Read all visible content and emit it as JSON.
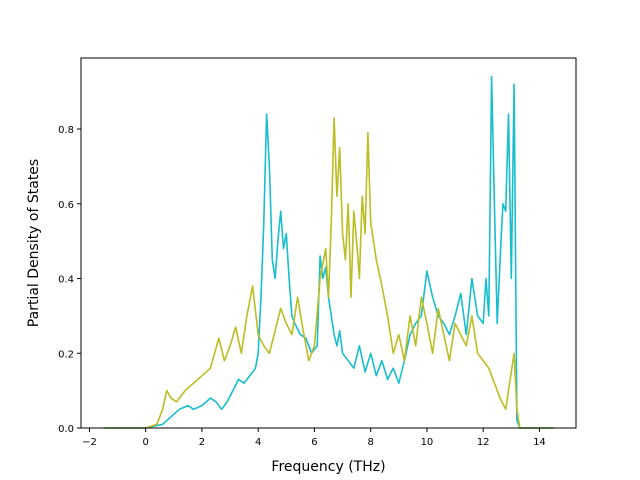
{
  "chart_data": {
    "type": "line",
    "xlabel": "Frequency (THz)",
    "ylabel": "Partial Density of States",
    "xlim": [
      -2.3,
      15.3
    ],
    "ylim": [
      0,
      0.99
    ],
    "xticks": [
      -2,
      0,
      2,
      4,
      6,
      8,
      10,
      12,
      14
    ],
    "yticks": [
      0.0,
      0.2,
      0.4,
      0.6,
      0.8
    ],
    "xtick_labels": [
      "−2",
      "0",
      "2",
      "4",
      "6",
      "8",
      "10",
      "12",
      "14"
    ],
    "ytick_labels": [
      "0.0",
      "0.2",
      "0.4",
      "0.6",
      "0.8"
    ],
    "grid": false,
    "series": [
      {
        "color": "#17becf",
        "x": [
          -1.5,
          0.0,
          0.6,
          0.9,
          1.2,
          1.5,
          1.7,
          2.0,
          2.3,
          2.5,
          2.7,
          2.9,
          3.1,
          3.3,
          3.5,
          3.7,
          3.9,
          4.0,
          4.1,
          4.2,
          4.3,
          4.4,
          4.5,
          4.6,
          4.7,
          4.8,
          4.9,
          5.0,
          5.1,
          5.2,
          5.3,
          5.5,
          5.7,
          5.9,
          6.1,
          6.2,
          6.3,
          6.4,
          6.5,
          6.6,
          6.7,
          6.8,
          6.9,
          7.0,
          7.2,
          7.4,
          7.6,
          7.8,
          8.0,
          8.2,
          8.4,
          8.6,
          8.8,
          9.0,
          9.2,
          9.4,
          9.6,
          9.8,
          10.0,
          10.2,
          10.4,
          10.6,
          10.8,
          11.0,
          11.2,
          11.4,
          11.6,
          11.8,
          12.0,
          12.1,
          12.2,
          12.3,
          12.4,
          12.5,
          12.6,
          12.7,
          12.8,
          12.9,
          13.0,
          13.1,
          13.2,
          13.3,
          13.4,
          14.5
        ],
        "y": [
          0.0,
          0.0,
          0.01,
          0.03,
          0.05,
          0.06,
          0.05,
          0.06,
          0.08,
          0.07,
          0.05,
          0.07,
          0.1,
          0.13,
          0.12,
          0.14,
          0.16,
          0.2,
          0.35,
          0.55,
          0.84,
          0.7,
          0.45,
          0.4,
          0.5,
          0.58,
          0.48,
          0.52,
          0.4,
          0.3,
          0.28,
          0.25,
          0.24,
          0.2,
          0.22,
          0.46,
          0.4,
          0.43,
          0.35,
          0.3,
          0.25,
          0.22,
          0.26,
          0.2,
          0.18,
          0.16,
          0.22,
          0.15,
          0.2,
          0.14,
          0.18,
          0.13,
          0.16,
          0.12,
          0.18,
          0.25,
          0.28,
          0.3,
          0.42,
          0.35,
          0.3,
          0.28,
          0.25,
          0.3,
          0.36,
          0.25,
          0.4,
          0.3,
          0.28,
          0.4,
          0.3,
          0.94,
          0.6,
          0.28,
          0.45,
          0.6,
          0.58,
          0.84,
          0.4,
          0.92,
          0.02,
          0.0,
          0.0,
          0.0
        ]
      },
      {
        "color": "#bcbd22",
        "x": [
          -1.5,
          0.0,
          0.4,
          0.6,
          0.75,
          0.9,
          1.1,
          1.4,
          1.7,
          2.0,
          2.3,
          2.6,
          2.8,
          3.0,
          3.2,
          3.4,
          3.6,
          3.8,
          4.0,
          4.2,
          4.4,
          4.6,
          4.8,
          5.0,
          5.2,
          5.4,
          5.6,
          5.8,
          6.0,
          6.2,
          6.4,
          6.5,
          6.6,
          6.7,
          6.8,
          6.9,
          7.0,
          7.1,
          7.2,
          7.3,
          7.4,
          7.5,
          7.6,
          7.7,
          7.8,
          7.9,
          8.0,
          8.2,
          8.4,
          8.6,
          8.8,
          9.0,
          9.2,
          9.4,
          9.6,
          9.8,
          10.0,
          10.2,
          10.4,
          10.6,
          10.8,
          11.0,
          11.2,
          11.4,
          11.6,
          11.8,
          12.0,
          12.2,
          12.4,
          12.6,
          12.8,
          13.0,
          13.1,
          13.2,
          13.3,
          14.5
        ],
        "y": [
          0.0,
          0.0,
          0.01,
          0.05,
          0.1,
          0.08,
          0.07,
          0.1,
          0.12,
          0.14,
          0.16,
          0.24,
          0.18,
          0.22,
          0.27,
          0.2,
          0.3,
          0.38,
          0.25,
          0.22,
          0.2,
          0.26,
          0.32,
          0.28,
          0.25,
          0.35,
          0.26,
          0.18,
          0.22,
          0.4,
          0.48,
          0.35,
          0.55,
          0.83,
          0.62,
          0.75,
          0.52,
          0.45,
          0.6,
          0.35,
          0.58,
          0.5,
          0.4,
          0.62,
          0.52,
          0.79,
          0.55,
          0.45,
          0.38,
          0.3,
          0.2,
          0.25,
          0.18,
          0.3,
          0.22,
          0.35,
          0.28,
          0.2,
          0.32,
          0.25,
          0.18,
          0.28,
          0.25,
          0.22,
          0.3,
          0.2,
          0.18,
          0.16,
          0.12,
          0.08,
          0.05,
          0.15,
          0.2,
          0.05,
          0.0,
          0.0
        ]
      }
    ]
  }
}
